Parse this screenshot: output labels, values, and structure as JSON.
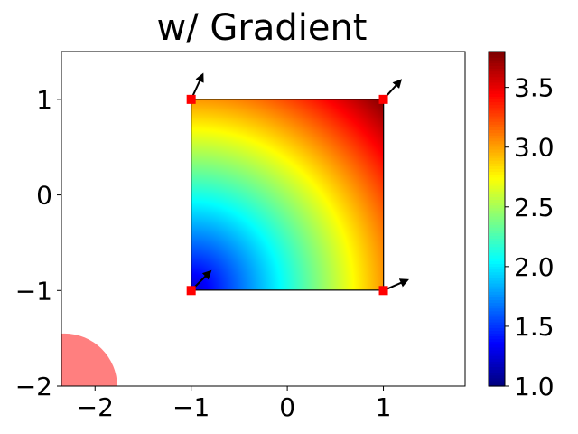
{
  "chart_data": {
    "type": "heatmap",
    "title": "w/ Gradient",
    "xlabel": "",
    "ylabel": "",
    "xlim": [
      -2.35,
      1.85
    ],
    "ylim": [
      -2.0,
      1.5
    ],
    "xticks": [
      -2,
      -1,
      0,
      1
    ],
    "xtick_labels": [
      "−2",
      "−1",
      "0",
      "1"
    ],
    "yticks": [
      -2,
      -1,
      0,
      1
    ],
    "ytick_labels": [
      "−2",
      "−1",
      "0",
      "1"
    ],
    "grid": false,
    "colormap": "jet",
    "square": {
      "x": [
        -1,
        1
      ],
      "y": [
        -1,
        1
      ],
      "value_min": 1.0,
      "value_max": 3.8
    },
    "corner_points": [
      {
        "x": -1,
        "y": -1,
        "grad": [
          0.2,
          0.2
        ]
      },
      {
        "x": -1,
        "y": 1,
        "grad": [
          0.12,
          0.26
        ]
      },
      {
        "x": 1,
        "y": -1,
        "grad": [
          0.25,
          0.11
        ]
      },
      {
        "x": 1,
        "y": 1,
        "grad": [
          0.18,
          0.2
        ]
      }
    ],
    "marker_color": "#ff0000",
    "circle": {
      "cx": -2.32,
      "cy": -2.0,
      "r": 0.55,
      "color": "#ff0000",
      "alpha": 0.5
    },
    "colorbar": {
      "range": [
        1.0,
        3.8
      ],
      "ticks": [
        1.0,
        1.5,
        2.0,
        2.5,
        3.0,
        3.5
      ],
      "tick_labels": [
        "1.0",
        "1.5",
        "2.0",
        "2.5",
        "3.0",
        "3.5"
      ]
    }
  }
}
